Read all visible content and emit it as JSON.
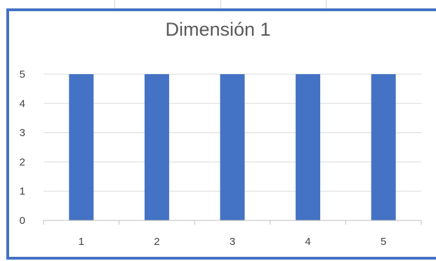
{
  "colors": {
    "bar": "#4472c4",
    "frame": "#4472c4",
    "gridline": "#d9d9d9",
    "axis": "#bfbfbf",
    "title": "#595959",
    "tick": "#404040"
  },
  "chart_data": {
    "type": "bar",
    "title": "Dimensión 1",
    "xlabel": "",
    "ylabel": "",
    "categories": [
      "1",
      "2",
      "3",
      "4",
      "5"
    ],
    "series": [
      {
        "values": [
          5,
          5,
          5,
          5,
          5
        ]
      }
    ],
    "ylim": [
      0,
      5
    ],
    "yticks": [
      0,
      1,
      2,
      3,
      4,
      5
    ],
    "grid": true,
    "legend": "none"
  }
}
